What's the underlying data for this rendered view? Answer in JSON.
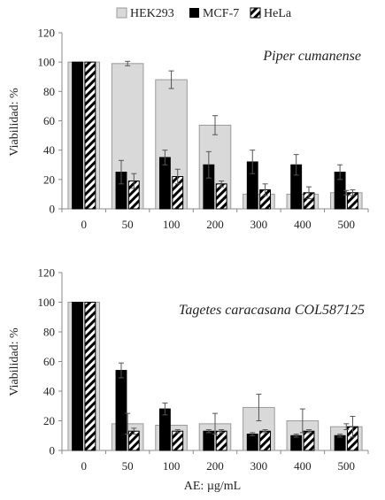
{
  "legend": [
    {
      "name": "HEK293",
      "style": "light-gray"
    },
    {
      "name": "MCF-7",
      "style": "black"
    },
    {
      "name": "HeLa",
      "style": "hatched"
    }
  ],
  "xlabel": "AE: µg/mL",
  "colors": {
    "hek": "#d9d9d9",
    "hekStroke": "#9a9a9a",
    "mcf": "#000000",
    "hela": "#ffffff",
    "errorbar": "#555555"
  },
  "chart_data": [
    {
      "type": "bar",
      "title": "Piper cumanense",
      "ylabel": "Viabilidad: %",
      "ylim": [
        0,
        120
      ],
      "yticks": [
        0,
        20,
        40,
        60,
        80,
        100,
        120
      ],
      "categories": [
        "0",
        "50",
        "100",
        "200",
        "300",
        "400",
        "500"
      ],
      "series": [
        {
          "name": "HEK293",
          "values": [
            100,
            99,
            88,
            57,
            10,
            10,
            11
          ],
          "errors": [
            0,
            1.5,
            6,
            6.5,
            0,
            0,
            1.5
          ]
        },
        {
          "name": "MCF-7",
          "values": [
            100,
            25,
            35,
            30,
            32,
            30,
            25
          ],
          "errors": [
            0,
            8,
            5,
            9,
            8,
            7,
            5
          ]
        },
        {
          "name": "HeLa",
          "values": [
            100,
            19,
            22,
            17,
            13,
            11,
            11
          ],
          "errors": [
            0,
            5,
            5,
            2,
            4,
            4,
            2
          ]
        }
      ],
      "legend": "top-center",
      "grid": false
    },
    {
      "type": "bar",
      "title": "Tagetes caracasana COL587125",
      "ylabel": "Viabilidad: %",
      "ylim": [
        0,
        120
      ],
      "yticks": [
        0,
        20,
        40,
        60,
        80,
        100,
        120
      ],
      "categories": [
        "0",
        "50",
        "100",
        "200",
        "300",
        "400",
        "500"
      ],
      "series": [
        {
          "name": "HEK293",
          "values": [
            100,
            18,
            17,
            18,
            29,
            20,
            16
          ],
          "errors": [
            0,
            7,
            0,
            7,
            9,
            8,
            2
          ]
        },
        {
          "name": "MCF-7",
          "values": [
            100,
            54,
            28,
            13,
            11,
            10,
            10
          ],
          "errors": [
            0,
            5,
            4,
            1,
            1,
            1,
            1
          ]
        },
        {
          "name": "HeLa",
          "values": [
            100,
            13,
            13,
            13,
            13,
            13,
            16
          ],
          "errors": [
            0,
            2,
            1,
            1,
            1,
            1,
            7
          ]
        }
      ],
      "legend": "top-center",
      "grid": false,
      "xlabel": "AE: µg/mL"
    }
  ]
}
